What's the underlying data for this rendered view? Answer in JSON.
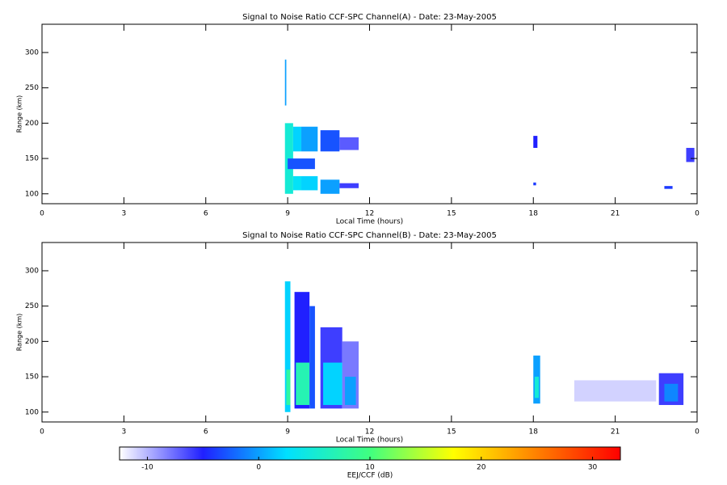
{
  "chart_data": [
    {
      "type": "heatmap",
      "title": "Signal to Noise Ratio CCF-SPC Channel(A) - Date: 23-May-2005",
      "xlabel": "Local Time (hours)",
      "ylabel": "Range (km)",
      "xlim": [
        0,
        24
      ],
      "xticks": [
        0,
        3,
        6,
        9,
        12,
        15,
        18,
        21,
        {
          "value": 24,
          "label": "0"
        }
      ],
      "ylim": [
        86,
        340
      ],
      "yticks": [
        100,
        150,
        200,
        250,
        300
      ],
      "cells": [
        {
          "t": [
            8.9,
            8.95
          ],
          "r": [
            225,
            290
          ],
          "snr": 0
        },
        {
          "t": [
            8.9,
            9.2
          ],
          "r": [
            100,
            200
          ],
          "snr": 5
        },
        {
          "t": [
            9.2,
            9.5
          ],
          "r": [
            160,
            195
          ],
          "snr": 2
        },
        {
          "t": [
            9.2,
            9.5
          ],
          "r": [
            105,
            125
          ],
          "snr": 3
        },
        {
          "t": [
            9.5,
            10.1
          ],
          "r": [
            160,
            195
          ],
          "snr": 0
        },
        {
          "t": [
            9.5,
            10.1
          ],
          "r": [
            105,
            125
          ],
          "snr": 2
        },
        {
          "t": [
            9.0,
            10.0
          ],
          "r": [
            135,
            150
          ],
          "snr": -3
        },
        {
          "t": [
            10.2,
            10.9
          ],
          "r": [
            160,
            190
          ],
          "snr": -3
        },
        {
          "t": [
            10.2,
            10.9
          ],
          "r": [
            100,
            120
          ],
          "snr": 0
        },
        {
          "t": [
            10.9,
            11.6
          ],
          "r": [
            162,
            180
          ],
          "snr": -7
        },
        {
          "t": [
            10.9,
            11.6
          ],
          "r": [
            108,
            115
          ],
          "snr": -6
        },
        {
          "t": [
            18.0,
            18.15
          ],
          "r": [
            165,
            182
          ],
          "snr": -5
        },
        {
          "t": [
            18.0,
            18.1
          ],
          "r": [
            112,
            116
          ],
          "snr": -4
        },
        {
          "t": [
            22.8,
            23.1
          ],
          "r": [
            107,
            111
          ],
          "snr": -4
        },
        {
          "t": [
            23.6,
            23.9
          ],
          "r": [
            145,
            165
          ],
          "snr": -6
        }
      ]
    },
    {
      "type": "heatmap",
      "title": "Signal to Noise Ratio CCF-SPC Channel(B) - Date: 23-May-2005",
      "xlabel": "Local Time (hours)",
      "ylabel": "Range (km)",
      "xlim": [
        0,
        24
      ],
      "xticks": [
        0,
        3,
        6,
        9,
        12,
        15,
        18,
        21,
        {
          "value": 24,
          "label": "0"
        }
      ],
      "ylim": [
        86,
        340
      ],
      "yticks": [
        100,
        150,
        200,
        250,
        300
      ],
      "cells": [
        {
          "t": [
            8.9,
            9.1
          ],
          "r": [
            100,
            285
          ],
          "snr": 2
        },
        {
          "t": [
            8.95,
            9.1
          ],
          "r": [
            110,
            160
          ],
          "snr": 8
        },
        {
          "t": [
            9.25,
            9.8
          ],
          "r": [
            105,
            270
          ],
          "snr": -5
        },
        {
          "t": [
            9.3,
            9.8
          ],
          "r": [
            110,
            170
          ],
          "snr": 7
        },
        {
          "t": [
            9.8,
            10.0
          ],
          "r": [
            105,
            250
          ],
          "snr": -3
        },
        {
          "t": [
            10.2,
            11.0
          ],
          "r": [
            105,
            220
          ],
          "snr": -6
        },
        {
          "t": [
            10.3,
            11.0
          ],
          "r": [
            110,
            170
          ],
          "snr": 2
        },
        {
          "t": [
            11.0,
            11.6
          ],
          "r": [
            105,
            200
          ],
          "snr": -8
        },
        {
          "t": [
            11.1,
            11.5
          ],
          "r": [
            110,
            150
          ],
          "snr": 0
        },
        {
          "t": [
            18.0,
            18.25
          ],
          "r": [
            112,
            180
          ],
          "snr": 0
        },
        {
          "t": [
            18.05,
            18.2
          ],
          "r": [
            120,
            150
          ],
          "snr": 5
        },
        {
          "t": [
            19.5,
            22.5
          ],
          "r": [
            115,
            145
          ],
          "snr": -11
        },
        {
          "t": [
            22.6,
            23.5
          ],
          "r": [
            110,
            155
          ],
          "snr": -6
        },
        {
          "t": [
            22.8,
            23.3
          ],
          "r": [
            115,
            140
          ],
          "snr": -1
        }
      ]
    }
  ],
  "colorbar": {
    "label": "EEJ/CCF (dB)",
    "clim": [
      -12.5,
      32.5
    ],
    "ticks": [
      -10,
      0,
      10,
      20,
      30
    ],
    "colors": [
      "#ffffff",
      "#2020ff",
      "#00e0ff",
      "#40ff80",
      "#ffff00",
      "#ff8000",
      "#ff0000"
    ]
  }
}
